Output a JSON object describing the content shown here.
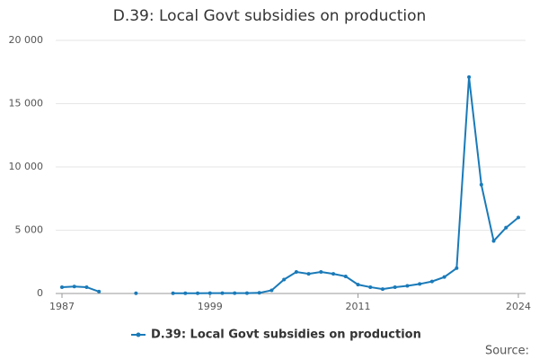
{
  "chart_data": {
    "type": "line",
    "title": "D.39: Local Govt subsidies on production",
    "x": [
      1987,
      1988,
      1989,
      1990,
      1991,
      1992,
      1993,
      1994,
      1995,
      1996,
      1997,
      1998,
      1999,
      2000,
      2001,
      2002,
      2003,
      2004,
      2005,
      2006,
      2007,
      2008,
      2009,
      2010,
      2011,
      2012,
      2013,
      2014,
      2015,
      2016,
      2017,
      2018,
      2019,
      2020,
      2021,
      2022,
      2023,
      2024
    ],
    "series": [
      {
        "name": "D.39: Local Govt subsidies on production",
        "color": "#1a7ab8",
        "values": [
          500,
          550,
          500,
          150,
          null,
          null,
          20,
          null,
          null,
          20,
          20,
          20,
          30,
          30,
          30,
          30,
          50,
          250,
          1100,
          1700,
          1550,
          1700,
          1550,
          1350,
          700,
          500,
          350,
          500,
          600,
          750,
          950,
          1300,
          2000,
          17100,
          8600,
          4150,
          5200,
          6000
        ]
      }
    ],
    "xlim": [
      1987,
      2024
    ],
    "xticks": [
      1987,
      1999,
      2011,
      2024
    ],
    "ylim": [
      0,
      20000
    ],
    "yticks": [
      0,
      {
        "value": 5000,
        "label": "5 000"
      },
      {
        "value": 10000,
        "label": "10 000"
      },
      {
        "value": 15000,
        "label": "15 000"
      },
      {
        "value": 20000,
        "label": "20 000"
      }
    ],
    "grid": true,
    "legend": "bottom",
    "source_label": "Source:"
  }
}
